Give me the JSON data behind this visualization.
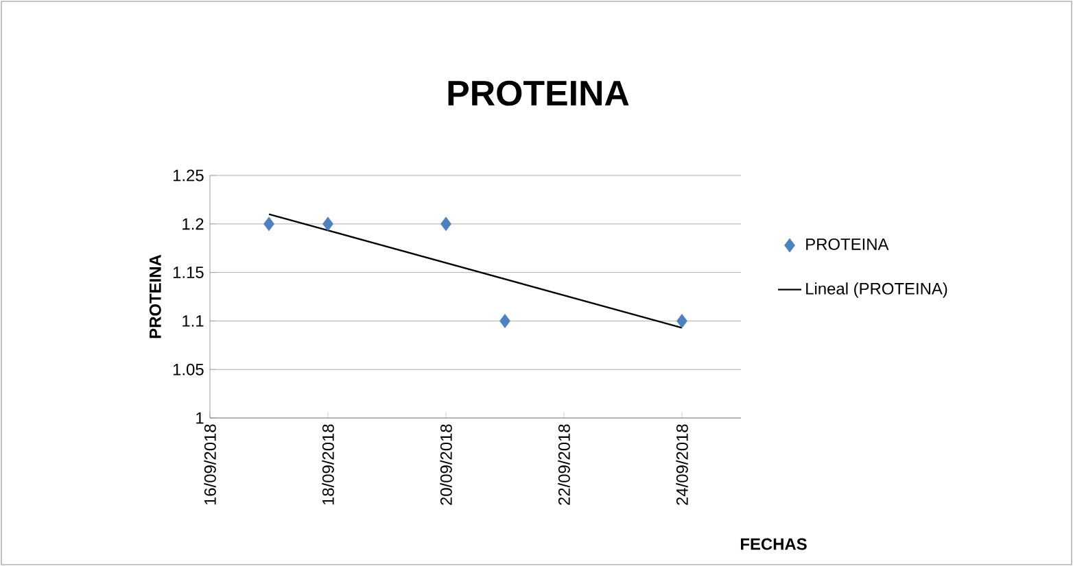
{
  "chart_data": {
    "type": "scatter",
    "title": "PROTEINA",
    "xlabel": "FECHAS",
    "ylabel": "PROTEINA",
    "series": [
      {
        "name": "PROTEINA",
        "color": "#4f81bd",
        "marker": "diamond",
        "x": [
          "2018-09-17",
          "2018-09-18",
          "2018-09-20",
          "2018-09-21",
          "2018-09-24"
        ],
        "values": [
          1.2,
          1.2,
          1.2,
          1.1,
          1.1
        ]
      },
      {
        "name": "Lineal (PROTEINA)",
        "type": "line",
        "color": "#000000",
        "marker": "none",
        "line_style": "solid",
        "x": [
          "2018-09-17",
          "2018-09-24"
        ],
        "values": [
          1.21,
          1.093
        ]
      }
    ],
    "xlim": [
      "2018-09-16",
      "2018-09-25"
    ],
    "xticks": [
      {
        "value": "2018-09-16",
        "label": "16/09/2018"
      },
      {
        "value": "2018-09-18",
        "label": "18/09/2018"
      },
      {
        "value": "2018-09-20",
        "label": "20/09/2018"
      },
      {
        "value": "2018-09-22",
        "label": "22/09/2018"
      },
      {
        "value": "2018-09-24",
        "label": "24/09/2018"
      }
    ],
    "ylim": [
      1,
      1.25
    ],
    "yticks": [
      1,
      1.05,
      1.1,
      1.15,
      1.2,
      1.25
    ],
    "grid": "y",
    "legend": "right"
  }
}
